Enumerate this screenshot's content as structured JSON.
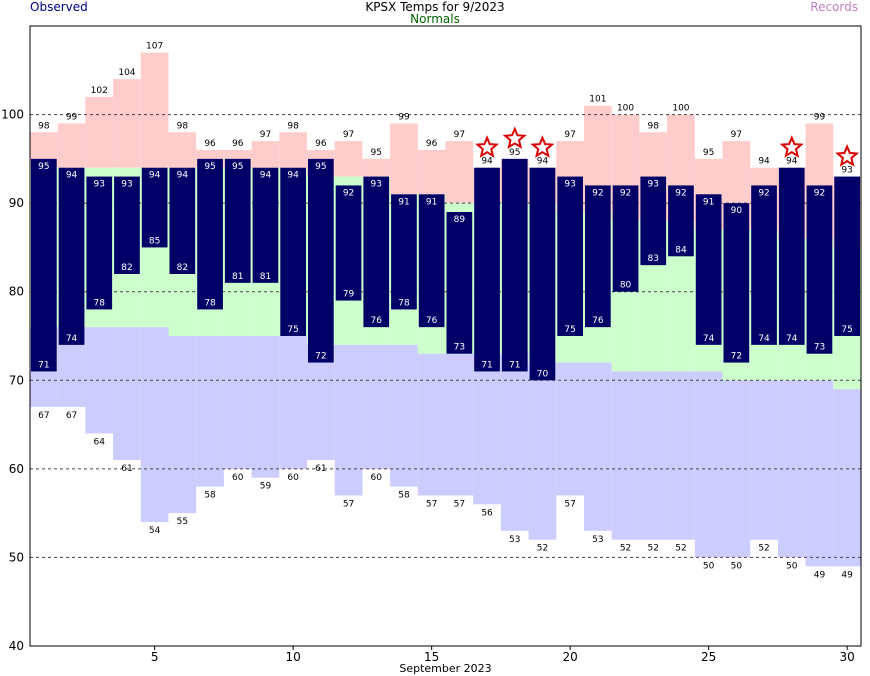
{
  "chart_data": {
    "type": "bar",
    "title": "KPSX Temps for 9/2023",
    "xlabel": "September 2023",
    "legend": {
      "observed": "Observed",
      "normals": "Normals",
      "records": "Records"
    },
    "ylim": [
      40,
      110
    ],
    "yticks": [
      40,
      50,
      60,
      70,
      80,
      90,
      100
    ],
    "xticks": [
      5,
      10,
      15,
      20,
      25,
      30
    ],
    "days": [
      1,
      2,
      3,
      4,
      5,
      6,
      7,
      8,
      9,
      10,
      11,
      12,
      13,
      14,
      15,
      16,
      17,
      18,
      19,
      20,
      21,
      22,
      23,
      24,
      25,
      26,
      27,
      28,
      29,
      30
    ],
    "observed_high": [
      95,
      94,
      93,
      93,
      94,
      94,
      95,
      95,
      94,
      94,
      95,
      92,
      93,
      91,
      91,
      89,
      94,
      95,
      94,
      93,
      92,
      92,
      93,
      92,
      91,
      90,
      92,
      94,
      92,
      93
    ],
    "observed_low": [
      71,
      74,
      78,
      82,
      85,
      82,
      78,
      81,
      81,
      75,
      72,
      79,
      76,
      78,
      76,
      73,
      71,
      71,
      70,
      75,
      76,
      80,
      83,
      84,
      74,
      72,
      74,
      74,
      73,
      75
    ],
    "normal_high": [
      94,
      94,
      94,
      94,
      94,
      94,
      94,
      94,
      94,
      94,
      93,
      93,
      93,
      91,
      91,
      90,
      90,
      90,
      90,
      89,
      89,
      88,
      88,
      88,
      87,
      87,
      87,
      86,
      86,
      85
    ],
    "normal_low": [
      76,
      76,
      76,
      76,
      76,
      75,
      75,
      75,
      75,
      75,
      74,
      74,
      74,
      74,
      73,
      73,
      73,
      73,
      72,
      72,
      72,
      71,
      71,
      71,
      71,
      70,
      70,
      70,
      70,
      69
    ],
    "record_high": [
      98,
      99,
      102,
      104,
      107,
      98,
      96,
      96,
      97,
      98,
      96,
      97,
      95,
      99,
      96,
      97,
      94,
      95,
      94,
      97,
      101,
      100,
      98,
      100,
      95,
      97,
      94,
      94,
      99,
      93
    ],
    "record_low": [
      67,
      67,
      64,
      61,
      54,
      55,
      58,
      60,
      59,
      60,
      61,
      57,
      60,
      58,
      57,
      57,
      56,
      53,
      52,
      57,
      53,
      52,
      52,
      52,
      50,
      50,
      52,
      50,
      49,
      49
    ],
    "record_days": [
      17,
      18,
      19,
      28,
      30
    ],
    "colors": {
      "observed": "#000066",
      "normal": "#ccffcc",
      "record_high": "#ffcccc",
      "record_low": "#ccccff",
      "star": "#dd0000",
      "observed_legend": "#000080",
      "normals_legend": "#006400",
      "records_legend": "#c080c0"
    },
    "grid": "dashed horizontal"
  }
}
